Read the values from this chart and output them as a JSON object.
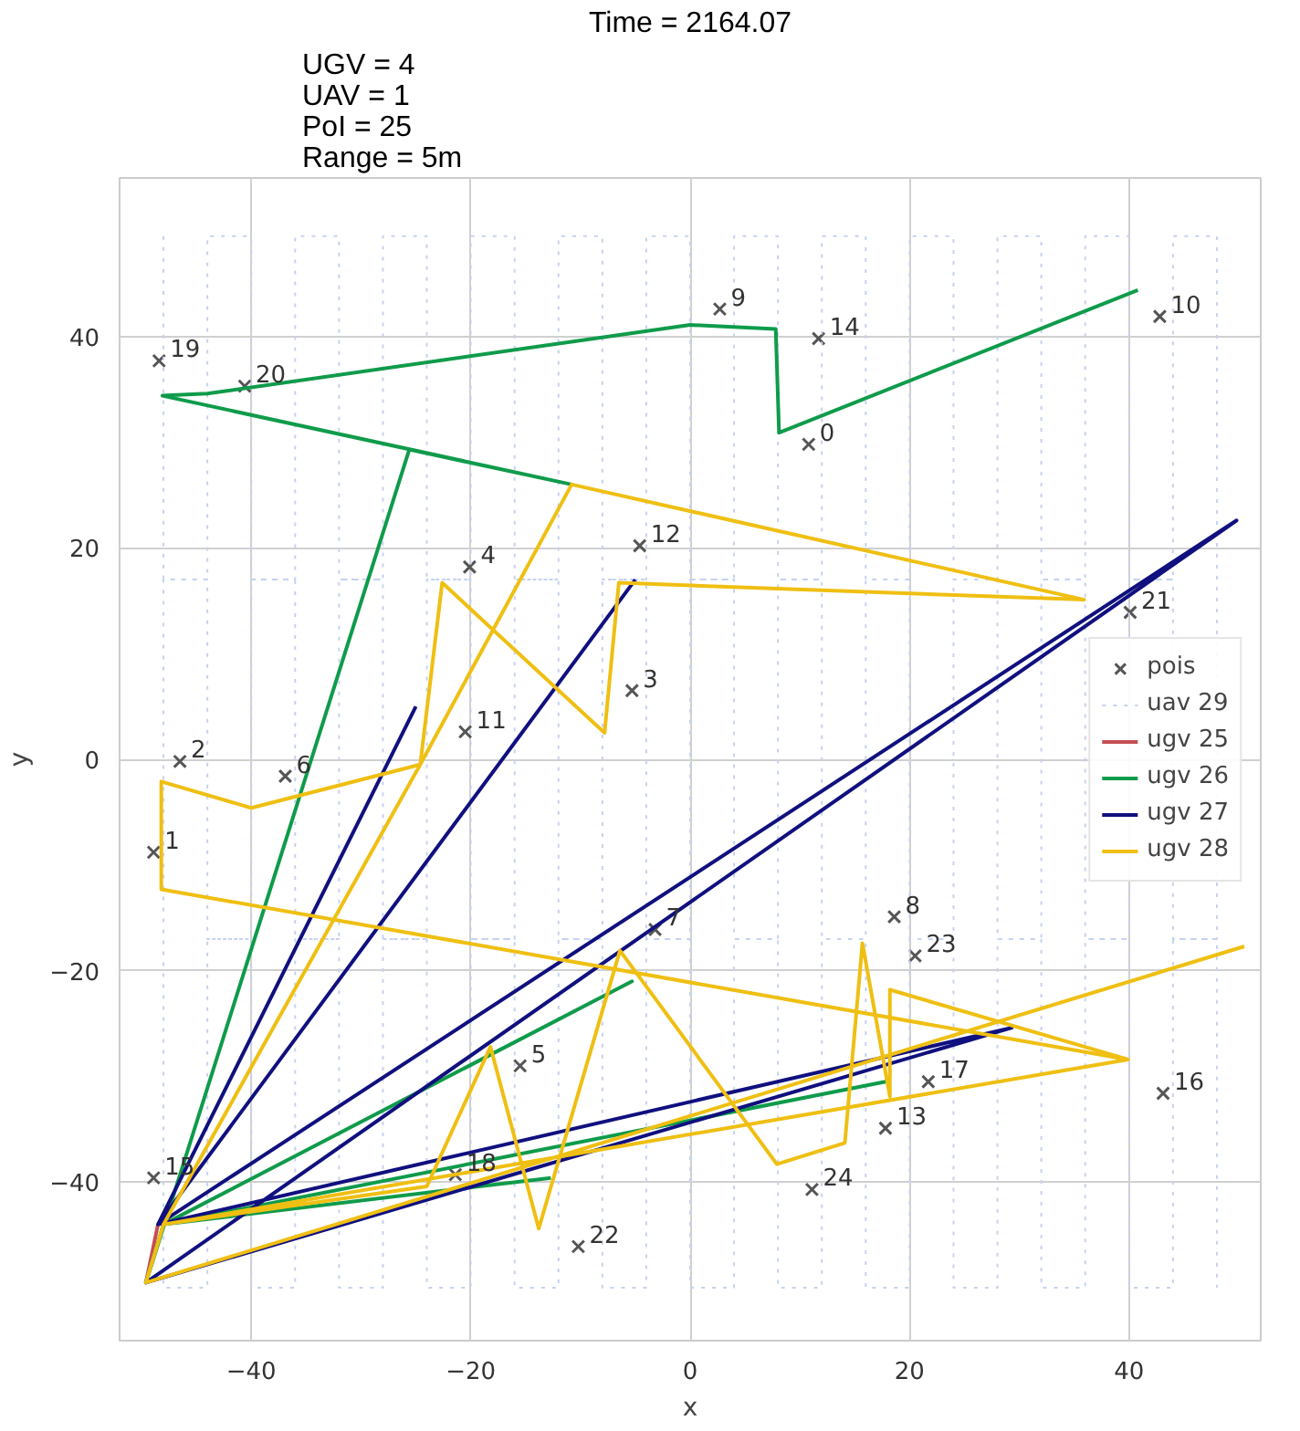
{
  "chart_data": {
    "type": "line",
    "xlabel": "x",
    "ylabel": "y",
    "annotations": [
      "UGV = 4\nUAV = 1\nPoI = 25\nRange = 5m",
      "Time = 2164.07",
      {
        "text": "0",
        "x": 10.8,
        "y": 29.8
      },
      {
        "text": "1",
        "x": -48.9,
        "y": -8.8
      },
      {
        "text": "2",
        "x": -46.5,
        "y": -0.2
      },
      {
        "text": "3",
        "x": -5.3,
        "y": 6.5
      },
      {
        "text": "4",
        "x": -20.1,
        "y": 18.2
      },
      {
        "text": "5",
        "x": -15.5,
        "y": -29.0
      },
      {
        "text": "6",
        "x": -36.9,
        "y": -1.6
      },
      {
        "text": "7",
        "x": -3.2,
        "y": -16.1
      },
      {
        "text": "8",
        "x": 18.6,
        "y": -14.9
      },
      {
        "text": "9",
        "x": 2.7,
        "y": 42.6
      },
      {
        "text": "10",
        "x": 42.8,
        "y": 41.9
      },
      {
        "text": "11",
        "x": -20.5,
        "y": 2.6
      },
      {
        "text": "12",
        "x": -4.6,
        "y": 20.2
      },
      {
        "text": "13",
        "x": 17.8,
        "y": -34.9
      },
      {
        "text": "14",
        "x": 11.7,
        "y": 39.8
      },
      {
        "text": "15",
        "x": -48.9,
        "y": -39.6
      },
      {
        "text": "16",
        "x": 43.1,
        "y": -31.6
      },
      {
        "text": "17",
        "x": 21.7,
        "y": -30.5
      },
      {
        "text": "18",
        "x": -21.4,
        "y": -39.3
      },
      {
        "text": "19",
        "x": -48.4,
        "y": 37.7
      },
      {
        "text": "20",
        "x": -40.6,
        "y": 35.3
      },
      {
        "text": "21",
        "x": 40.1,
        "y": 13.9
      },
      {
        "text": "22",
        "x": -10.2,
        "y": -46.1
      },
      {
        "text": "23",
        "x": 20.5,
        "y": -18.6
      },
      {
        "text": "24",
        "x": 11.1,
        "y": -40.7
      }
    ],
    "series": [
      {
        "name": "pois",
        "type": "scatter",
        "marker": "cross",
        "color": "#555555",
        "x": [
          10.8,
          -48.9,
          -46.5,
          -5.3,
          -20.1,
          -15.5,
          -36.9,
          -3.2,
          18.6,
          2.7,
          42.8,
          -20.5,
          -4.6,
          17.8,
          11.7,
          -48.9,
          43.1,
          21.7,
          -21.4,
          -48.4,
          -40.6,
          40.1,
          -10.2,
          20.5,
          11.1
        ],
        "values": [
          29.8,
          -8.8,
          -0.2,
          6.5,
          18.2,
          -29.0,
          -1.6,
          -16.1,
          -14.9,
          42.6,
          41.9,
          2.6,
          20.2,
          -34.9,
          39.8,
          -39.6,
          -31.6,
          -30.5,
          -39.3,
          37.7,
          35.3,
          13.9,
          -46.1,
          -18.6,
          -40.7
        ]
      },
      {
        "name": "uav 29",
        "color": "#c5d2f0",
        "line_style": "dotted",
        "x": [
          -48,
          -48,
          -44,
          -44,
          -40,
          -40,
          -36,
          -36,
          -32,
          -32,
          -28,
          -28,
          -24,
          -24,
          -20,
          -20,
          -16,
          -16,
          -12,
          -12,
          -8,
          -8,
          -4,
          -4,
          0,
          0,
          4,
          4,
          8,
          8,
          12,
          12,
          16,
          16,
          20,
          20,
          24,
          24,
          28,
          28,
          32,
          32,
          36,
          36,
          40,
          40,
          44,
          44,
          48,
          48,
          48,
          48,
          44,
          44,
          40,
          40,
          36,
          36,
          32,
          32,
          28,
          28,
          24,
          24,
          20,
          20,
          16,
          16,
          12,
          12,
          8,
          8,
          4,
          4,
          0,
          0,
          -4,
          -4,
          -8,
          -8,
          -12,
          -12,
          -16,
          -16,
          -20,
          -20,
          -24,
          -24,
          -28,
          -28,
          -32,
          -32,
          -36,
          -36,
          -40,
          -40,
          -44,
          -44,
          -48,
          -48,
          -48,
          -48,
          -44,
          -44,
          -40,
          -40,
          -36,
          -36,
          -32,
          -32,
          -28,
          -28,
          -24,
          -24,
          -20,
          -20,
          -16,
          -16,
          -12,
          -12,
          -8,
          -8,
          -4,
          -4,
          0,
          0,
          4,
          4,
          8,
          8,
          12,
          12,
          16,
          16,
          20,
          20,
          24,
          24,
          28,
          28,
          32,
          32,
          36,
          36,
          40,
          40,
          44,
          44,
          48,
          48
        ],
        "values": [
          49.5,
          17,
          17,
          49.5,
          49.5,
          17,
          17,
          49.5,
          49.5,
          17,
          17,
          49.5,
          49.5,
          17,
          17,
          49.5,
          49.5,
          17,
          17,
          49.5,
          49.5,
          17,
          17,
          49.5,
          49.5,
          17,
          17,
          49.5,
          49.5,
          17,
          17,
          49.5,
          49.5,
          17,
          17,
          49.5,
          49.5,
          17,
          17,
          49.5,
          49.5,
          17,
          17,
          49.5,
          49.5,
          17,
          17,
          49.5,
          49.5,
          17,
          17,
          -17,
          -17,
          17,
          17,
          -17,
          -17,
          17,
          17,
          -17,
          -17,
          17,
          17,
          -17,
          -17,
          17,
          17,
          -17,
          -17,
          17,
          17,
          -17,
          -17,
          17,
          17,
          -17,
          -17,
          17,
          17,
          -17,
          -17,
          17,
          17,
          -17,
          -17,
          17,
          17,
          -17,
          -17,
          17,
          17,
          -17,
          -17,
          17,
          17,
          -17,
          -17,
          17,
          17,
          -17,
          -17,
          -50,
          -50,
          -17,
          -17,
          -50,
          -50,
          -17,
          -17,
          -50,
          -50,
          -17,
          -17,
          -50,
          -50,
          -17,
          -17,
          -50,
          -50,
          -17,
          -17,
          -50,
          -50,
          -17,
          -17,
          -50,
          -50,
          -17,
          -17,
          -50,
          -50,
          -17,
          -17,
          -50,
          -50,
          -17,
          -17,
          -50,
          -50,
          -17,
          -17,
          -50,
          -50,
          -17,
          -17,
          -50,
          -50,
          -17,
          -17,
          -50
        ]
      },
      {
        "name": "ugv 25",
        "color": "#c44e52",
        "x": [
          -49.6,
          -48.5
        ],
        "values": [
          -49.5,
          -44
        ]
      },
      {
        "name": "ugv 26",
        "color": "#0f9b4b",
        "x": [
          -12.7,
          -48,
          17.8,
          -48,
          -5.3,
          -48,
          -49.6,
          -25.6,
          -10.8,
          -48.1,
          -44,
          0,
          7.8,
          8.1,
          40.8
        ],
        "values": [
          -39.6,
          -44,
          -30.5,
          -44,
          -21,
          -44,
          -49.5,
          29.3,
          26.0,
          34.4,
          34.6,
          41.1,
          40.7,
          30.9,
          44.4
        ]
      },
      {
        "name": "ugv 27",
        "color": "#10107f",
        "x": [
          -5,
          -48.5,
          49.8,
          -49.6,
          29.3,
          -48.5,
          -25
        ],
        "values": [
          17,
          -44,
          22.6,
          -49.5,
          -25.4,
          -44,
          5
        ]
      },
      {
        "name": "ugv 28",
        "color": "#efbf12",
        "x": [
          50.5,
          -49.6,
          -48,
          -24.6,
          -10.8,
          35.9,
          -6.5,
          -7.8,
          -22.6,
          -24.6,
          -40,
          -48.2,
          -48.2,
          39.9,
          18.2,
          18.2,
          15.7,
          14.1,
          7.9,
          -6.4,
          -13.8,
          -18.2,
          -24,
          -48,
          39.9
        ],
        "values": [
          -17.7,
          -49.5,
          -44,
          -0.5,
          26.0,
          15.1,
          16.7,
          2.5,
          16.7,
          -0.5,
          -4.6,
          -2.1,
          -12.3,
          -28.4,
          -21.8,
          -31.9,
          -17.4,
          -36.3,
          -38.3,
          -18.1,
          -44.4,
          -27.2,
          -40.4,
          -44,
          -28.4
        ]
      }
    ],
    "xlim": [
      -52,
      52
    ],
    "ylim": [
      -55,
      55
    ],
    "xticks": [
      -40,
      -20,
      0,
      20,
      40
    ],
    "yticks": [
      -40,
      -20,
      0,
      20,
      40
    ],
    "grid": true,
    "legend": "right"
  }
}
